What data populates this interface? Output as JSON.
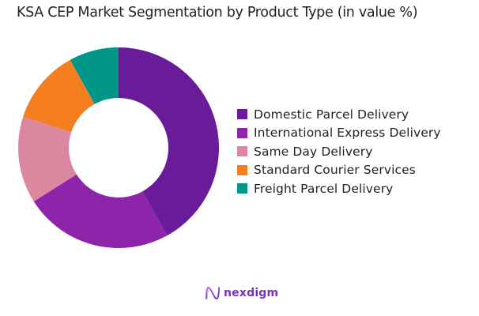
{
  "chart_data": {
    "type": "pie",
    "variant": "donut",
    "title": "KSA CEP Market Segmentation by Product Type (in value %)",
    "categories": [
      "Domestic Parcel Delivery",
      "International Express Delivery",
      "Same Day Delivery",
      "Standard Courier Services",
      "Freight Parcel Delivery"
    ],
    "values": [
      42,
      24,
      14,
      12,
      8
    ],
    "colors": [
      "#6A1B9A",
      "#8E24AA",
      "#DB87A0",
      "#F57F20",
      "#009688"
    ],
    "legend_position": "right",
    "start_angle": "top, clockwise"
  },
  "header": {
    "title": "KSA CEP Market Segmentation by Product Type (in value %)"
  },
  "legend": {
    "items": [
      {
        "label": "Domestic Parcel Delivery",
        "color": "#6A1B9A"
      },
      {
        "label": "International Express Delivery",
        "color": "#8E24AA"
      },
      {
        "label": "Same Day Delivery",
        "color": "#DB87A0"
      },
      {
        "label": "Standard Courier Services",
        "color": "#F57F20"
      },
      {
        "label": "Freight Parcel Delivery",
        "color": "#009688"
      }
    ]
  },
  "footer": {
    "logo_text": "nexdigm",
    "logo_color": "#7B2FBE"
  }
}
